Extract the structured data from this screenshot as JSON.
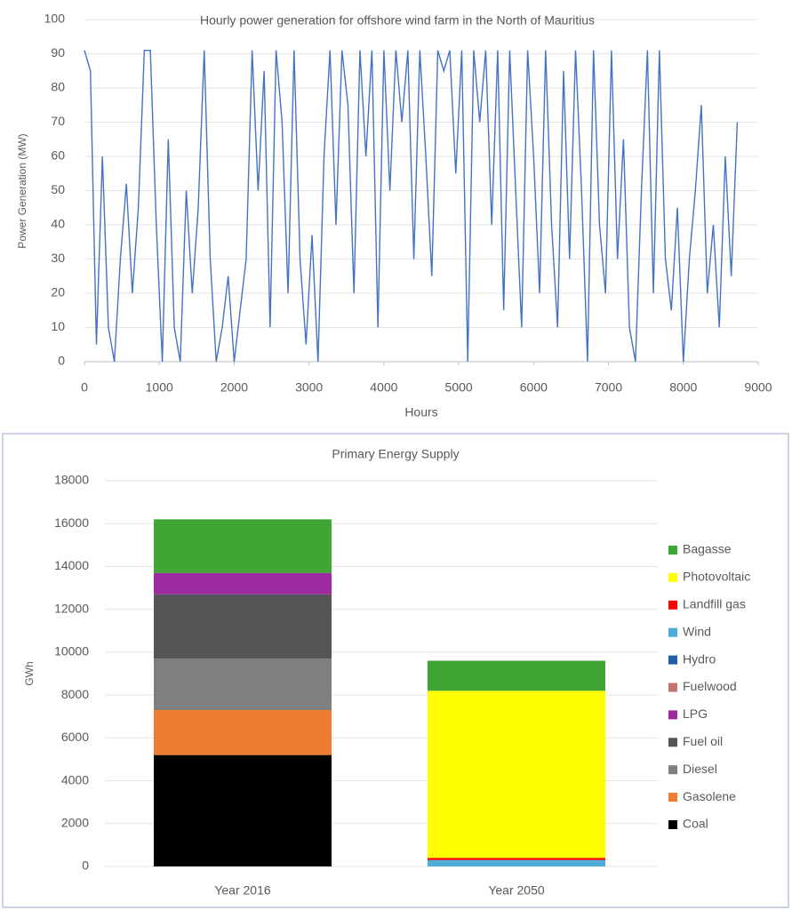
{
  "chart_data": [
    {
      "type": "line",
      "title": "Hourly power generation for offshore wind farm in the North of Mauritius",
      "xlabel": "Hours",
      "ylabel": "Power Generation (MW)",
      "color": "#4472c4",
      "xlim": [
        0,
        9000
      ],
      "xticks": [
        0,
        1000,
        2000,
        3000,
        4000,
        5000,
        6000,
        7000,
        8000,
        9000
      ],
      "ylim": [
        0,
        100
      ],
      "yticks": [
        0,
        10,
        20,
        30,
        40,
        50,
        60,
        70,
        80,
        90,
        100
      ],
      "grid": true,
      "x": [
        0,
        80,
        160,
        240,
        320,
        400,
        480,
        560,
        640,
        720,
        800,
        880,
        960,
        1040,
        1120,
        1200,
        1280,
        1360,
        1440,
        1520,
        1600,
        1680,
        1760,
        1840,
        1920,
        2000,
        2080,
        2160,
        2240,
        2320,
        2400,
        2480,
        2560,
        2640,
        2720,
        2800,
        2880,
        2960,
        3040,
        3120,
        3200,
        3280,
        3360,
        3440,
        3520,
        3600,
        3680,
        3760,
        3840,
        3920,
        4000,
        4080,
        4160,
        4240,
        4320,
        4400,
        4480,
        4560,
        4640,
        4720,
        4800,
        4880,
        4960,
        5040,
        5120,
        5200,
        5280,
        5360,
        5440,
        5520,
        5600,
        5680,
        5760,
        5840,
        5920,
        6000,
        6080,
        6160,
        6240,
        6320,
        6400,
        6480,
        6560,
        6640,
        6720,
        6800,
        6880,
        6960,
        7040,
        7120,
        7200,
        7280,
        7360,
        7440,
        7520,
        7600,
        7680,
        7760,
        7840,
        7920,
        8000,
        8080,
        8160,
        8240,
        8320,
        8400,
        8480,
        8560,
        8640,
        8720
      ],
      "values": [
        91,
        85,
        5,
        60,
        10,
        0,
        30,
        52,
        20,
        45,
        91,
        91,
        40,
        0,
        65,
        10,
        0,
        50,
        20,
        45,
        91,
        30,
        0,
        10,
        25,
        0,
        15,
        30,
        91,
        50,
        85,
        10,
        91,
        70,
        20,
        91,
        30,
        5,
        37,
        0,
        60,
        91,
        40,
        91,
        75,
        20,
        91,
        60,
        91,
        10,
        91,
        50,
        91,
        70,
        91,
        30,
        91,
        60,
        25,
        91,
        85,
        91,
        55,
        91,
        0,
        91,
        70,
        91,
        40,
        91,
        15,
        91,
        50,
        10,
        91,
        60,
        20,
        91,
        40,
        10,
        85,
        30,
        91,
        50,
        0,
        91,
        40,
        20,
        91,
        30,
        65,
        10,
        0,
        50,
        91,
        20,
        91,
        30,
        15,
        45,
        0,
        30,
        50,
        75,
        20,
        40,
        10,
        60,
        25,
        70
      ]
    },
    {
      "type": "stacked_bar",
      "title": "Primary Energy Supply",
      "ylabel": "GWh",
      "categories": [
        "Year 2016",
        "Year 2050"
      ],
      "ylim": [
        0,
        18000
      ],
      "yticks": [
        0,
        2000,
        4000,
        6000,
        8000,
        10000,
        12000,
        14000,
        16000,
        18000
      ],
      "grid": true,
      "legend": "right",
      "series": [
        {
          "name": "Coal",
          "color": "#000000",
          "values": [
            5200,
            0
          ]
        },
        {
          "name": "Gasolene",
          "color": "#ed7d31",
          "values": [
            2100,
            0
          ]
        },
        {
          "name": "Diesel",
          "color": "#7f7f7f",
          "values": [
            2400,
            0
          ]
        },
        {
          "name": "Fuel oil",
          "color": "#555555",
          "values": [
            3000,
            0
          ]
        },
        {
          "name": "LPG",
          "color": "#9c2aa0",
          "values": [
            1000,
            0
          ]
        },
        {
          "name": "Fuelwood",
          "color": "#c0766e",
          "values": [
            0,
            0
          ]
        },
        {
          "name": "Hydro",
          "color": "#1f5fa8",
          "values": [
            0,
            0
          ]
        },
        {
          "name": "Wind",
          "color": "#4dadd8",
          "values": [
            0,
            300
          ]
        },
        {
          "name": "Landfill gas",
          "color": "#ff0000",
          "values": [
            0,
            100
          ]
        },
        {
          "name": "Photovoltaic",
          "color": "#ffff00",
          "values": [
            0,
            7800
          ]
        },
        {
          "name": "Bagasse",
          "color": "#3fa535",
          "values": [
            2500,
            1400
          ]
        }
      ]
    }
  ]
}
